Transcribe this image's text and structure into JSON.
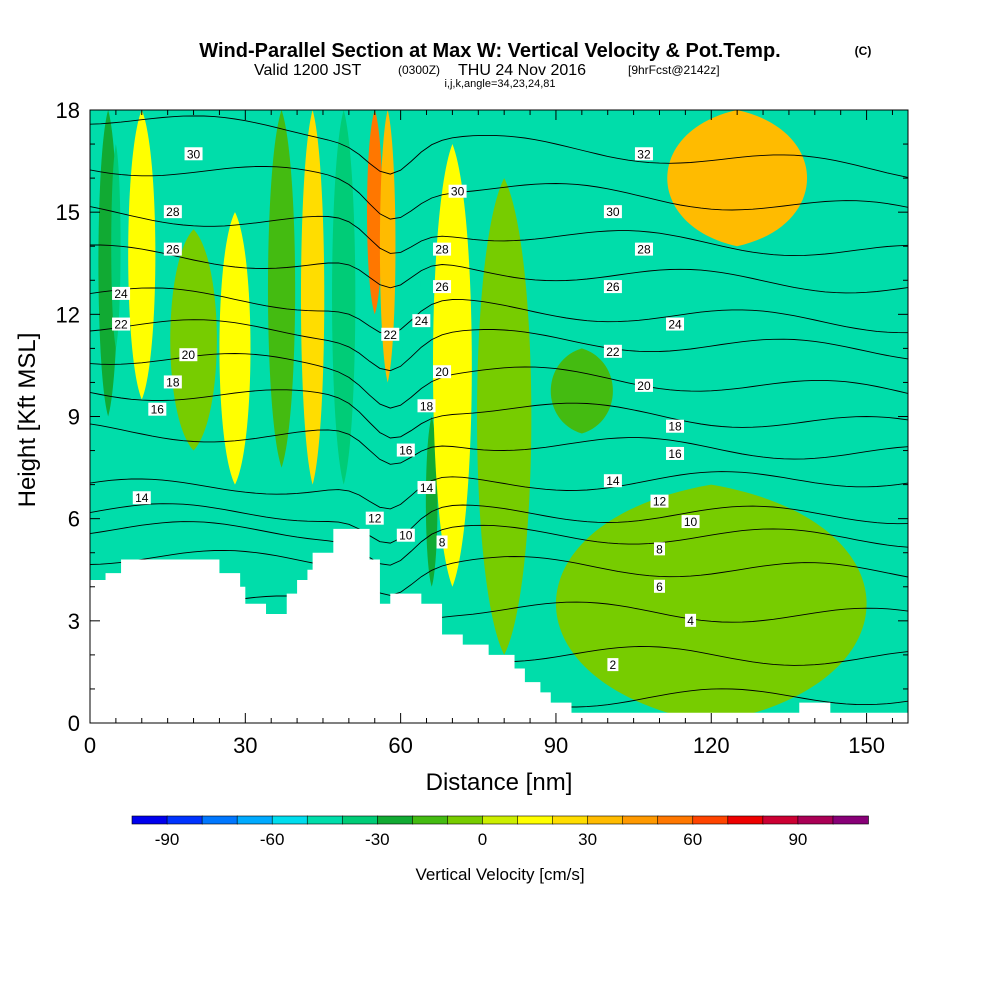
{
  "title": {
    "main": "Wind-Parallel Section at Max W: Vertical Velocity & Pot.Temp.",
    "copyright": "(C)",
    "valid_prefix": "Valid 1200 JST",
    "valid_utc": "(0300Z)",
    "valid_date": "THU 24 Nov 2016",
    "forecast": "[9hrFcst@2142z]",
    "indices": "i,j,k,angle=34,23,24,81"
  },
  "chart_data": {
    "type": "heatmap",
    "xlabel": "Distance [nm]",
    "ylabel": "Height [Kft MSL]",
    "xlim": [
      0,
      158
    ],
    "ylim": [
      0,
      18
    ],
    "x_ticks": [
      0,
      30,
      60,
      90,
      120,
      150
    ],
    "y_ticks": [
      0,
      3,
      6,
      9,
      12,
      15,
      18
    ],
    "colorbar": {
      "title": "Vertical Velocity [cm/s]",
      "range": [
        -100,
        110
      ],
      "step": 10,
      "tick_values": [
        -90,
        -60,
        -30,
        0,
        30,
        60,
        90
      ],
      "tick_labels": [
        "-90",
        "-60",
        "-30",
        "0",
        "30",
        "60",
        "90"
      ],
      "colors": [
        "#0000ee",
        "#0033ff",
        "#0077ff",
        "#00aaff",
        "#00ddee",
        "#00ddaa",
        "#00cc77",
        "#11aa33",
        "#44bb11",
        "#77cc00",
        "#ccee00",
        "#ffff00",
        "#ffdd00",
        "#ffbb00",
        "#ff9900",
        "#ff7700",
        "#ff4400",
        "#ee0000",
        "#cc0033",
        "#aa0055",
        "#880077"
      ]
    },
    "background_level": 5,
    "vertical_velocity_regions": [
      {
        "x_center": 3.5,
        "x_half_width": 2.5,
        "y_range": [
          9,
          18
        ],
        "w": -25
      },
      {
        "x_center": 5,
        "x_half_width": 1.2,
        "y_range": [
          11,
          17
        ],
        "w": -35
      },
      {
        "x_center": 10,
        "x_half_width": 3.5,
        "y_range": [
          9.5,
          18
        ],
        "w": 18
      },
      {
        "x_center": 20,
        "x_half_width": 6,
        "y_range": [
          8,
          14.5
        ],
        "w": -10
      },
      {
        "x_center": 28,
        "x_half_width": 4,
        "y_range": [
          7,
          15
        ],
        "w": 12
      },
      {
        "x_center": 37,
        "x_half_width": 3.5,
        "y_range": [
          7.5,
          18
        ],
        "w": -18
      },
      {
        "x_center": 43,
        "x_half_width": 3,
        "y_range": [
          7,
          18
        ],
        "w": 25
      },
      {
        "x_center": 49,
        "x_half_width": 3,
        "y_range": [
          7,
          18
        ],
        "w": -40
      },
      {
        "x_center": 55,
        "x_half_width": 2,
        "y_range": [
          12,
          18
        ],
        "w": 50
      },
      {
        "x_center": 57.5,
        "x_half_width": 2,
        "y_range": [
          10,
          18
        ],
        "w": 30
      },
      {
        "x_center": 62,
        "x_half_width": 2.5,
        "y_range": [
          8.5,
          18
        ],
        "w": -45
      },
      {
        "x_center": 66,
        "x_half_width": 1.5,
        "y_range": [
          4,
          9
        ],
        "w": -30
      },
      {
        "x_center": 70,
        "x_half_width": 5,
        "y_range": [
          4,
          17
        ],
        "w": 15
      },
      {
        "x_center": 80,
        "x_half_width": 7,
        "y_range": [
          2,
          16
        ],
        "w": -8
      },
      {
        "x_center": 95,
        "x_half_width": 8,
        "y_range": [
          8.5,
          11
        ],
        "w": -15
      },
      {
        "x_center": 125,
        "x_half_width": 18,
        "y_range": [
          14,
          18
        ],
        "w": 35
      },
      {
        "x_center": 120,
        "x_half_width": 40,
        "y_range": [
          0,
          7
        ],
        "w": -8
      }
    ],
    "terrain_height_kft": {
      "x": [
        0,
        3,
        6,
        23,
        25,
        29,
        30,
        34,
        38,
        40,
        42,
        43,
        47,
        51,
        54,
        56,
        58,
        64,
        68,
        72,
        77,
        82,
        84,
        87,
        89,
        93,
        135,
        137,
        143,
        158
      ],
      "y": [
        4.2,
        4.4,
        4.8,
        4.8,
        4.4,
        4.0,
        3.5,
        3.2,
        3.8,
        4.2,
        4.5,
        5.0,
        5.7,
        5.7,
        4.8,
        3.5,
        3.8,
        3.5,
        2.6,
        2.3,
        2.0,
        1.6,
        1.2,
        0.9,
        0.6,
        0.3,
        0.3,
        0.6,
        0.3,
        0.3
      ]
    },
    "theta_contours": [
      {
        "label": "2",
        "y_left": 0.6,
        "y_right": 0.8
      },
      {
        "label": "4",
        "y_left": 2.2,
        "y_right": 1.9
      },
      {
        "label": "6",
        "y_left": 3.6,
        "y_right": 3.1
      },
      {
        "label": "8",
        "y_left": 4.9,
        "y_right": 4.4
      },
      {
        "label": "10",
        "y_left": 5.7,
        "y_right": 5.4
      },
      {
        "label": "12",
        "y_left": 6.2,
        "y_right": 6.1
      },
      {
        "label": "14",
        "y_left": 6.9,
        "y_right": 7.2
      },
      {
        "label": "16",
        "y_left": 8.6,
        "y_right": 7.9
      },
      {
        "label": "18",
        "y_left": 9.8,
        "y_right": 8.7
      },
      {
        "label": "20",
        "y_left": 10.8,
        "y_right": 9.7
      },
      {
        "label": "22",
        "y_left": 11.7,
        "y_right": 10.9
      },
      {
        "label": "24",
        "y_left": 12.6,
        "y_right": 11.7
      },
      {
        "label": "26",
        "y_left": 13.8,
        "y_right": 12.8
      },
      {
        "label": "28",
        "y_left": 15.0,
        "y_right": 13.8
      },
      {
        "label": "30",
        "y_left": 16.4,
        "y_right": 15.0
      },
      {
        "label": "32",
        "y_left": 17.8,
        "y_right": 16.2
      }
    ],
    "contour_label_positions": [
      {
        "label": "30",
        "x": 20,
        "y": 16.7
      },
      {
        "label": "28",
        "x": 16,
        "y": 15.0
      },
      {
        "label": "26",
        "x": 16,
        "y": 13.9
      },
      {
        "label": "24",
        "x": 6,
        "y": 12.6
      },
      {
        "label": "22",
        "x": 6,
        "y": 11.7
      },
      {
        "label": "20",
        "x": 19,
        "y": 10.8
      },
      {
        "label": "18",
        "x": 16,
        "y": 10.0
      },
      {
        "label": "16",
        "x": 13,
        "y": 9.2
      },
      {
        "label": "14",
        "x": 10,
        "y": 6.6
      },
      {
        "label": "12",
        "x": 55,
        "y": 6.0
      },
      {
        "label": "10",
        "x": 61,
        "y": 5.5
      },
      {
        "label": "8",
        "x": 68,
        "y": 5.3
      },
      {
        "label": "16",
        "x": 61,
        "y": 8.0
      },
      {
        "label": "14",
        "x": 65,
        "y": 6.9
      },
      {
        "label": "18",
        "x": 65,
        "y": 9.3
      },
      {
        "label": "20",
        "x": 68,
        "y": 10.3
      },
      {
        "label": "22",
        "x": 58,
        "y": 11.4
      },
      {
        "label": "24",
        "x": 64,
        "y": 11.8
      },
      {
        "label": "26",
        "x": 68,
        "y": 12.8
      },
      {
        "label": "28",
        "x": 68,
        "y": 13.9
      },
      {
        "label": "30",
        "x": 71,
        "y": 15.6
      },
      {
        "label": "32",
        "x": 107,
        "y": 16.7
      },
      {
        "label": "30",
        "x": 101,
        "y": 15.0
      },
      {
        "label": "28",
        "x": 107,
        "y": 13.9
      },
      {
        "label": "26",
        "x": 101,
        "y": 12.8
      },
      {
        "label": "24",
        "x": 113,
        "y": 11.7
      },
      {
        "label": "22",
        "x": 101,
        "y": 10.9
      },
      {
        "label": "20",
        "x": 107,
        "y": 9.9
      },
      {
        "label": "18",
        "x": 113,
        "y": 8.7
      },
      {
        "label": "16",
        "x": 113,
        "y": 7.9
      },
      {
        "label": "14",
        "x": 101,
        "y": 7.1
      },
      {
        "label": "12",
        "x": 110,
        "y": 6.5
      },
      {
        "label": "10",
        "x": 116,
        "y": 5.9
      },
      {
        "label": "8",
        "x": 110,
        "y": 5.1
      },
      {
        "label": "6",
        "x": 110,
        "y": 4.0
      },
      {
        "label": "4",
        "x": 116,
        "y": 3.0
      },
      {
        "label": "2",
        "x": 101,
        "y": 1.7
      }
    ]
  }
}
